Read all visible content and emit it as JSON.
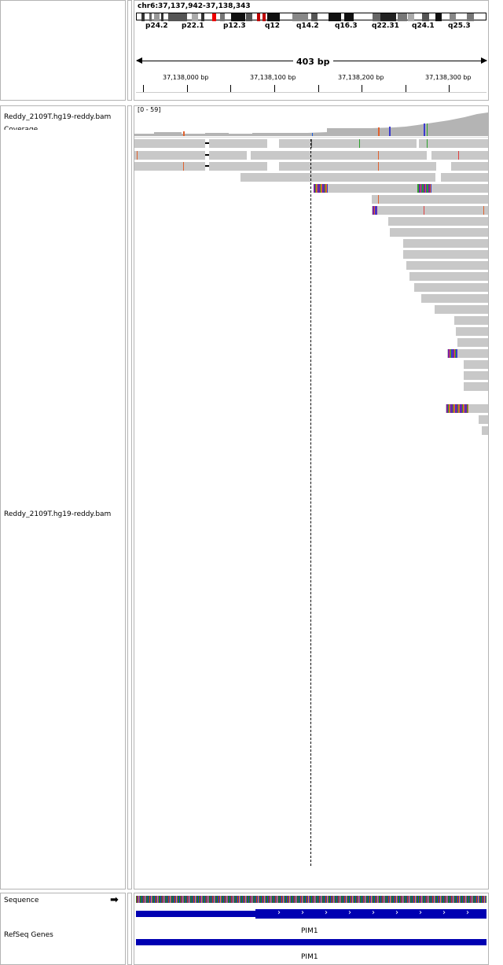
{
  "header": {
    "locus": "chr6:37,137,942-37,138,343",
    "bands": [
      "p24.2",
      "p22.1",
      "p12.3",
      "q12",
      "q14.2",
      "q16.3",
      "q22.31",
      "q24.1",
      "q25.3"
    ],
    "span_label": "403 bp",
    "ruler_ticks": [
      "37,138,000 bp",
      "37,138,100 bp",
      "37,138,200 bp",
      "37,138,300 bp"
    ]
  },
  "tracks": {
    "coverage_name": "Reddy_2109T.hg19-reddy.bam Coverage",
    "coverage_data_range": "[0 - 59]",
    "alignment_name": "Reddy_2109T.hg19-reddy.bam",
    "sequence_name": "Sequence",
    "refseq_name": "RefSeq Genes",
    "gene_label_1": "PIM1",
    "gene_label_2": "PIM1"
  },
  "colors": {
    "read_fill": "#c8c8c8",
    "coverage_fill": "#b4b4b4",
    "gene_blue": "#0000b2",
    "centromere": "#c00000",
    "panel_border": "#b4b4b4"
  },
  "icons": {
    "strand_arrow": "arrow-right-icon"
  }
}
